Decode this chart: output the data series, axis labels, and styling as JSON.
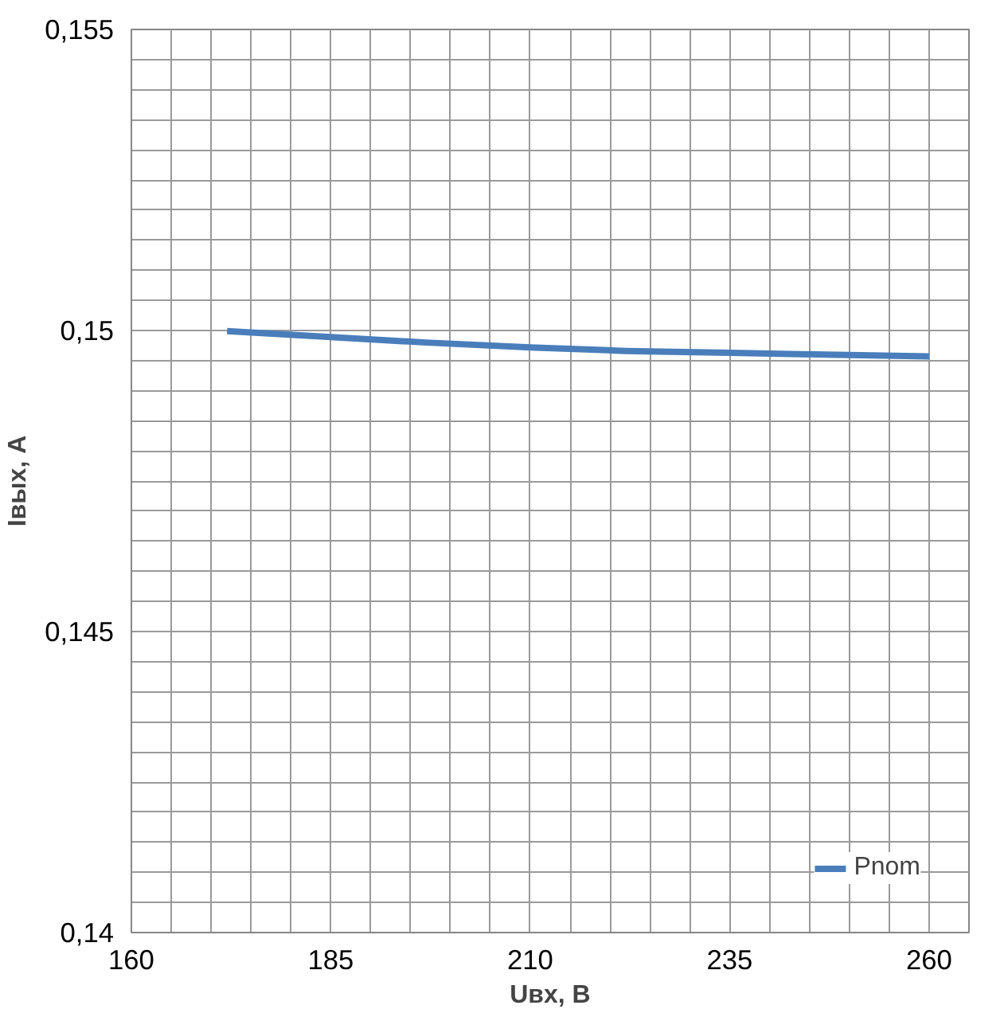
{
  "chart_data": {
    "type": "line",
    "xlabel": "Uвх, В",
    "ylabel": "Iвых, А",
    "x": [
      172,
      185,
      197,
      210,
      222,
      235,
      247,
      260
    ],
    "series": [
      {
        "name": "Pnom",
        "color": "#4a7ebb",
        "values": [
          0.14999,
          0.14989,
          0.1498,
          0.14972,
          0.14966,
          0.14963,
          0.1496,
          0.14957
        ]
      }
    ],
    "xlim": [
      160,
      265
    ],
    "xticks": [
      160,
      {
        "value": 165,
        "label": null
      },
      {
        "value": 170,
        "label": null
      },
      {
        "value": 175,
        "label": null
      },
      {
        "value": 180,
        "label": null
      },
      185,
      {
        "value": 190,
        "label": null
      },
      {
        "value": 195,
        "label": null
      },
      {
        "value": 200,
        "label": null
      },
      {
        "value": 205,
        "label": null
      },
      210,
      {
        "value": 215,
        "label": null
      },
      {
        "value": 220,
        "label": null
      },
      {
        "value": 225,
        "label": null
      },
      {
        "value": 230,
        "label": null
      },
      235,
      {
        "value": 240,
        "label": null
      },
      {
        "value": 245,
        "label": null
      },
      {
        "value": 250,
        "label": null
      },
      {
        "value": 255,
        "label": null
      },
      260,
      {
        "value": 265,
        "label": null
      }
    ],
    "ylim": [
      0.14,
      0.155
    ],
    "yticks": [
      {
        "value": 0.14,
        "label": "0,14"
      },
      {
        "value": 0.1405,
        "label": null
      },
      {
        "value": 0.141,
        "label": null
      },
      {
        "value": 0.1415,
        "label": null
      },
      {
        "value": 0.142,
        "label": null
      },
      {
        "value": 0.1425,
        "label": null
      },
      {
        "value": 0.143,
        "label": null
      },
      {
        "value": 0.1435,
        "label": null
      },
      {
        "value": 0.144,
        "label": null
      },
      {
        "value": 0.1445,
        "label": null
      },
      {
        "value": 0.145,
        "label": "0,145"
      },
      {
        "value": 0.1455,
        "label": null
      },
      {
        "value": 0.146,
        "label": null
      },
      {
        "value": 0.1465,
        "label": null
      },
      {
        "value": 0.147,
        "label": null
      },
      {
        "value": 0.1475,
        "label": null
      },
      {
        "value": 0.148,
        "label": null
      },
      {
        "value": 0.1485,
        "label": null
      },
      {
        "value": 0.149,
        "label": null
      },
      {
        "value": 0.1495,
        "label": null
      },
      {
        "value": 0.15,
        "label": "0,15"
      },
      {
        "value": 0.1505,
        "label": null
      },
      {
        "value": 0.151,
        "label": null
      },
      {
        "value": 0.1515,
        "label": null
      },
      {
        "value": 0.152,
        "label": null
      },
      {
        "value": 0.1525,
        "label": null
      },
      {
        "value": 0.153,
        "label": null
      },
      {
        "value": 0.1535,
        "label": null
      },
      {
        "value": 0.154,
        "label": null
      },
      {
        "value": 0.1545,
        "label": null
      },
      {
        "value": 0.155,
        "label": "0,155"
      }
    ],
    "grid": true,
    "legend": "bottom right",
    "line_style": "solid"
  }
}
